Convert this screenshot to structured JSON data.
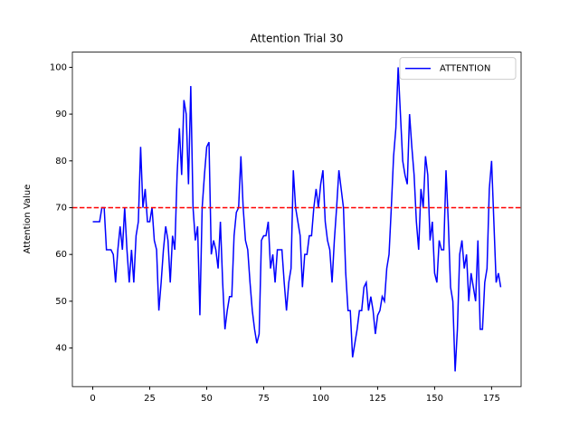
{
  "chart_data": {
    "type": "line",
    "title": "Attention Trial 30",
    "y_label": "Attention Value",
    "x": [
      0,
      1,
      2,
      3,
      4,
      5,
      6,
      7,
      8,
      9,
      10,
      11,
      12,
      13,
      14,
      15,
      16,
      17,
      18,
      19,
      20,
      21,
      22,
      23,
      24,
      25,
      26,
      27,
      28,
      29,
      30,
      31,
      32,
      33,
      34,
      35,
      36,
      37,
      38,
      39,
      40,
      41,
      42,
      43,
      44,
      45,
      46,
      47,
      48,
      49,
      50,
      51,
      52,
      53,
      54,
      55,
      56,
      57,
      58,
      59,
      60,
      61,
      62,
      63,
      64,
      65,
      66,
      67,
      68,
      69,
      70,
      71,
      72,
      73,
      74,
      75,
      76,
      77,
      78,
      79,
      80,
      81,
      82,
      83,
      84,
      85,
      86,
      87,
      88,
      89,
      90,
      91,
      92,
      93,
      94,
      95,
      96,
      97,
      98,
      99,
      100,
      101,
      102,
      103,
      104,
      105,
      106,
      107,
      108,
      109,
      110,
      111,
      112,
      113,
      114,
      115,
      116,
      117,
      118,
      119,
      120,
      121,
      122,
      123,
      124,
      125,
      126,
      127,
      128,
      129,
      130,
      131,
      132,
      133,
      134,
      135,
      136,
      137,
      138,
      139,
      140,
      141,
      142,
      143,
      144,
      145,
      146,
      147,
      148,
      149,
      150,
      151,
      152,
      153,
      154,
      155,
      156,
      157,
      158,
      159,
      160,
      161,
      162,
      163,
      164,
      165,
      166,
      167,
      168,
      169,
      170,
      171,
      172,
      173,
      174,
      175,
      176,
      177,
      178,
      179
    ],
    "series": [
      {
        "name": "ATTENTION",
        "color": "#0000ff",
        "values": [
          67,
          67,
          67,
          67,
          70,
          70,
          61,
          61,
          61,
          60,
          54,
          61,
          66,
          61,
          70,
          61,
          54,
          61,
          54,
          64,
          67,
          83,
          70,
          74,
          67,
          67,
          70,
          63,
          61,
          48,
          54,
          61,
          66,
          63,
          54,
          64,
          61,
          77,
          87,
          77,
          93,
          90,
          75,
          96,
          70,
          63,
          66,
          47,
          70,
          77,
          83,
          84,
          60,
          63,
          61,
          57,
          67,
          54,
          44,
          48,
          51,
          51,
          64,
          69,
          70,
          81,
          70,
          63,
          61,
          54,
          48,
          44,
          41,
          43,
          63,
          64,
          64,
          67,
          57,
          60,
          54,
          61,
          61,
          61,
          54,
          48,
          54,
          57,
          78,
          70,
          67,
          64,
          53,
          60,
          60,
          64,
          64,
          70,
          74,
          70,
          75,
          78,
          67,
          63,
          61,
          54,
          63,
          70,
          78,
          74,
          70,
          56,
          48,
          48,
          38,
          41,
          44,
          48,
          48,
          53,
          54,
          48,
          51,
          48,
          43,
          47,
          48,
          51,
          50,
          57,
          60,
          70,
          81,
          87,
          100,
          90,
          80,
          77,
          75,
          90,
          83,
          77,
          67,
          61,
          74,
          70,
          81,
          77,
          63,
          67,
          56,
          54,
          63,
          61,
          61,
          78,
          67,
          53,
          50,
          35,
          44,
          60,
          63,
          57,
          60,
          50,
          56,
          53,
          50,
          63,
          44,
          44,
          54,
          57,
          74,
          80,
          67,
          54,
          56,
          53
        ]
      }
    ],
    "reference_line": {
      "y": 70,
      "color": "#ff0000",
      "style": "dashed"
    },
    "xlim": [
      -8.95,
      187.95
    ],
    "ylim": [
      31.75,
      103.25
    ],
    "xticks": [
      0,
      25,
      50,
      75,
      100,
      125,
      150,
      175
    ],
    "yticks": [
      40,
      50,
      60,
      70,
      80,
      90,
      100
    ],
    "legend": "upper right"
  }
}
